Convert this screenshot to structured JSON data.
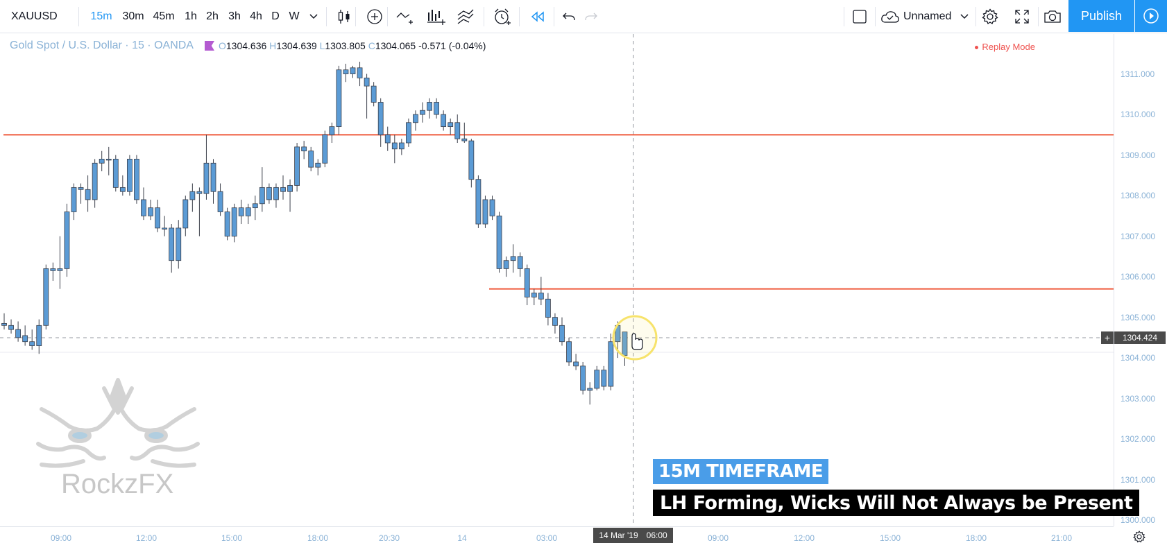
{
  "toolbar": {
    "symbol": "XAUUSD",
    "timeframes": [
      "15m",
      "30m",
      "45m",
      "1h",
      "2h",
      "3h",
      "4h",
      "D",
      "W"
    ],
    "active_timeframe": "15m",
    "layout_name": "Unnamed",
    "publish_label": "Publish"
  },
  "legend": {
    "title": "Gold Spot / U.S. Dollar · 15 · OANDA",
    "open_key": "O",
    "open": "1304.636",
    "high_key": "H",
    "high": "1304.639",
    "low_key": "L",
    "low": "1303.805",
    "close_key": "C",
    "close": "1304.065",
    "change": "-0.571 (-0.04%)"
  },
  "replay_mode": "Replay Mode",
  "price_axis": {
    "labels": [
      "1311.000",
      "1310.000",
      "1309.000",
      "1308.000",
      "1307.000",
      "1306.000",
      "1305.000",
      "1304.000",
      "1303.000",
      "1302.000",
      "1301.000",
      "1300.000"
    ],
    "current": "1304.424"
  },
  "time_axis": {
    "labels": [
      "09:00",
      "12:00",
      "15:00",
      "18:00",
      "20:30",
      "14",
      "03:00",
      "09:00",
      "12:00",
      "15:00",
      "18:00",
      "21:00"
    ],
    "cursor_date": "14 Mar '19",
    "cursor_time": "06:00"
  },
  "captions": {
    "line1": "15M TIMEFRAME",
    "line2": "LH Forming, Wicks Will Not Always be Present"
  },
  "watermark": "RockzFX",
  "colors": {
    "accent": "#2196f3",
    "candle": "#5b9bd5",
    "level_line": "#ef5a3c",
    "caption_blue": "#4a9de8",
    "highlight_ring": "#f7e36b"
  },
  "icons": [
    "chevron-down-icon",
    "candles-icon",
    "add-indicator-icon",
    "compare-icon",
    "indicators-icon",
    "templates-icon",
    "alert-icon",
    "replay-icon",
    "undo-icon",
    "redo-icon",
    "fullscreen-square-icon",
    "cloud-save-icon",
    "gear-icon",
    "expand-icon",
    "camera-icon",
    "play-icon"
  ],
  "chart_data": {
    "type": "candlestick",
    "title": "Gold Spot / U.S. Dollar · 15 · OANDA",
    "ylim": [
      1299.9,
      1311.3
    ],
    "horizontal_levels": [
      1309.5,
      1305.7
    ],
    "crosshair_price": 1304.424,
    "candles": [
      {
        "o": 1304.85,
        "h": 1305.1,
        "l": 1304.7,
        "c": 1304.8
      },
      {
        "o": 1304.8,
        "h": 1304.95,
        "l": 1304.6,
        "c": 1304.7
      },
      {
        "o": 1304.7,
        "h": 1304.9,
        "l": 1304.4,
        "c": 1304.5
      },
      {
        "o": 1304.55,
        "h": 1304.8,
        "l": 1304.3,
        "c": 1304.4
      },
      {
        "o": 1304.4,
        "h": 1304.7,
        "l": 1304.2,
        "c": 1304.3
      },
      {
        "o": 1304.3,
        "h": 1304.95,
        "l": 1304.1,
        "c": 1304.8
      },
      {
        "o": 1304.8,
        "h": 1306.3,
        "l": 1304.7,
        "c": 1306.2
      },
      {
        "o": 1306.2,
        "h": 1306.35,
        "l": 1305.9,
        "c": 1306.15
      },
      {
        "o": 1306.15,
        "h": 1307.0,
        "l": 1305.7,
        "c": 1306.2
      },
      {
        "o": 1306.2,
        "h": 1307.8,
        "l": 1306.0,
        "c": 1307.6
      },
      {
        "o": 1307.6,
        "h": 1308.3,
        "l": 1307.4,
        "c": 1308.2
      },
      {
        "o": 1308.2,
        "h": 1308.3,
        "l": 1307.8,
        "c": 1308.15
      },
      {
        "o": 1308.15,
        "h": 1308.5,
        "l": 1307.6,
        "c": 1307.9
      },
      {
        "o": 1307.9,
        "h": 1308.9,
        "l": 1307.7,
        "c": 1308.8
      },
      {
        "o": 1308.8,
        "h": 1309.1,
        "l": 1308.6,
        "c": 1308.9
      },
      {
        "o": 1308.9,
        "h": 1309.2,
        "l": 1308.5,
        "c": 1308.9
      },
      {
        "o": 1308.9,
        "h": 1309.0,
        "l": 1308.1,
        "c": 1308.2
      },
      {
        "o": 1308.2,
        "h": 1308.5,
        "l": 1308.0,
        "c": 1308.1
      },
      {
        "o": 1308.1,
        "h": 1309.0,
        "l": 1308.0,
        "c": 1308.9
      },
      {
        "o": 1308.9,
        "h": 1309.0,
        "l": 1307.8,
        "c": 1307.9
      },
      {
        "o": 1307.9,
        "h": 1308.2,
        "l": 1307.4,
        "c": 1307.5
      },
      {
        "o": 1307.5,
        "h": 1307.9,
        "l": 1307.4,
        "c": 1307.7
      },
      {
        "o": 1307.7,
        "h": 1307.9,
        "l": 1307.1,
        "c": 1307.2
      },
      {
        "o": 1307.2,
        "h": 1307.5,
        "l": 1307.0,
        "c": 1307.2
      },
      {
        "o": 1307.2,
        "h": 1307.3,
        "l": 1306.1,
        "c": 1306.4
      },
      {
        "o": 1306.4,
        "h": 1307.4,
        "l": 1306.2,
        "c": 1307.2
      },
      {
        "o": 1307.2,
        "h": 1308.0,
        "l": 1307.0,
        "c": 1307.9
      },
      {
        "o": 1307.9,
        "h": 1308.3,
        "l": 1307.6,
        "c": 1308.1
      },
      {
        "o": 1308.1,
        "h": 1308.2,
        "l": 1307.0,
        "c": 1308.05
      },
      {
        "o": 1308.05,
        "h": 1309.5,
        "l": 1307.9,
        "c": 1308.8
      },
      {
        "o": 1308.8,
        "h": 1308.9,
        "l": 1307.8,
        "c": 1308.1
      },
      {
        "o": 1308.1,
        "h": 1308.3,
        "l": 1307.5,
        "c": 1307.6
      },
      {
        "o": 1307.6,
        "h": 1307.7,
        "l": 1306.9,
        "c": 1307.0
      },
      {
        "o": 1307.0,
        "h": 1307.8,
        "l": 1306.85,
        "c": 1307.7
      },
      {
        "o": 1307.7,
        "h": 1307.9,
        "l": 1307.3,
        "c": 1307.5
      },
      {
        "o": 1307.5,
        "h": 1307.8,
        "l": 1307.3,
        "c": 1307.7
      },
      {
        "o": 1307.7,
        "h": 1308.0,
        "l": 1307.4,
        "c": 1307.8
      },
      {
        "o": 1307.8,
        "h": 1308.7,
        "l": 1307.6,
        "c": 1308.2
      },
      {
        "o": 1308.2,
        "h": 1308.3,
        "l": 1307.8,
        "c": 1307.9
      },
      {
        "o": 1307.9,
        "h": 1308.3,
        "l": 1307.7,
        "c": 1308.2
      },
      {
        "o": 1308.2,
        "h": 1308.5,
        "l": 1307.9,
        "c": 1308.1
      },
      {
        "o": 1308.1,
        "h": 1308.4,
        "l": 1307.6,
        "c": 1308.25
      },
      {
        "o": 1308.25,
        "h": 1309.3,
        "l": 1308.1,
        "c": 1309.2
      },
      {
        "o": 1309.2,
        "h": 1309.35,
        "l": 1308.9,
        "c": 1309.1
      },
      {
        "o": 1309.1,
        "h": 1309.2,
        "l": 1308.6,
        "c": 1308.7
      },
      {
        "o": 1308.7,
        "h": 1308.9,
        "l": 1308.5,
        "c": 1308.8
      },
      {
        "o": 1308.8,
        "h": 1309.6,
        "l": 1308.7,
        "c": 1309.5
      },
      {
        "o": 1309.5,
        "h": 1309.8,
        "l": 1309.3,
        "c": 1309.7
      },
      {
        "o": 1309.7,
        "h": 1311.2,
        "l": 1309.5,
        "c": 1311.1
      },
      {
        "o": 1311.1,
        "h": 1311.25,
        "l": 1310.8,
        "c": 1311.0
      },
      {
        "o": 1311.0,
        "h": 1311.2,
        "l": 1310.9,
        "c": 1311.15
      },
      {
        "o": 1311.15,
        "h": 1311.3,
        "l": 1310.7,
        "c": 1310.9
      },
      {
        "o": 1310.9,
        "h": 1311.0,
        "l": 1309.9,
        "c": 1310.7
      },
      {
        "o": 1310.7,
        "h": 1310.8,
        "l": 1310.2,
        "c": 1310.3
      },
      {
        "o": 1310.3,
        "h": 1310.4,
        "l": 1309.2,
        "c": 1309.5
      },
      {
        "o": 1309.5,
        "h": 1309.7,
        "l": 1309.1,
        "c": 1309.3
      },
      {
        "o": 1309.3,
        "h": 1309.5,
        "l": 1308.8,
        "c": 1309.15
      },
      {
        "o": 1309.15,
        "h": 1309.4,
        "l": 1309.0,
        "c": 1309.3
      },
      {
        "o": 1309.3,
        "h": 1309.9,
        "l": 1309.2,
        "c": 1309.8
      },
      {
        "o": 1309.8,
        "h": 1310.1,
        "l": 1309.6,
        "c": 1310.0
      },
      {
        "o": 1310.0,
        "h": 1310.3,
        "l": 1309.8,
        "c": 1310.1
      },
      {
        "o": 1310.1,
        "h": 1310.4,
        "l": 1309.9,
        "c": 1310.3
      },
      {
        "o": 1310.3,
        "h": 1310.4,
        "l": 1309.9,
        "c": 1310.0
      },
      {
        "o": 1310.0,
        "h": 1310.1,
        "l": 1309.6,
        "c": 1309.7
      },
      {
        "o": 1309.7,
        "h": 1309.9,
        "l": 1309.5,
        "c": 1309.8
      },
      {
        "o": 1309.8,
        "h": 1310.0,
        "l": 1309.3,
        "c": 1309.4
      },
      {
        "o": 1309.4,
        "h": 1309.8,
        "l": 1309.3,
        "c": 1309.35
      },
      {
        "o": 1309.35,
        "h": 1309.4,
        "l": 1308.2,
        "c": 1308.4
      },
      {
        "o": 1308.4,
        "h": 1308.5,
        "l": 1307.2,
        "c": 1307.3
      },
      {
        "o": 1307.3,
        "h": 1308.0,
        "l": 1307.2,
        "c": 1307.9
      },
      {
        "o": 1307.9,
        "h": 1308.0,
        "l": 1307.4,
        "c": 1307.5
      },
      {
        "o": 1307.5,
        "h": 1307.6,
        "l": 1306.1,
        "c": 1306.2
      },
      {
        "o": 1306.2,
        "h": 1306.5,
        "l": 1306.0,
        "c": 1306.4
      },
      {
        "o": 1306.4,
        "h": 1306.8,
        "l": 1306.1,
        "c": 1306.5
      },
      {
        "o": 1306.5,
        "h": 1306.6,
        "l": 1306.0,
        "c": 1306.2
      },
      {
        "o": 1306.2,
        "h": 1306.3,
        "l": 1305.3,
        "c": 1305.5
      },
      {
        "o": 1305.5,
        "h": 1305.7,
        "l": 1305.3,
        "c": 1305.6
      },
      {
        "o": 1305.6,
        "h": 1306.0,
        "l": 1305.3,
        "c": 1305.45
      },
      {
        "o": 1305.45,
        "h": 1305.6,
        "l": 1304.8,
        "c": 1305.0
      },
      {
        "o": 1305.0,
        "h": 1305.1,
        "l": 1304.6,
        "c": 1304.8
      },
      {
        "o": 1304.8,
        "h": 1305.0,
        "l": 1304.3,
        "c": 1304.4
      },
      {
        "o": 1304.4,
        "h": 1304.5,
        "l": 1303.8,
        "c": 1303.9
      },
      {
        "o": 1303.9,
        "h": 1304.1,
        "l": 1303.7,
        "c": 1303.8
      },
      {
        "o": 1303.8,
        "h": 1303.9,
        "l": 1303.1,
        "c": 1303.2
      },
      {
        "o": 1303.2,
        "h": 1303.4,
        "l": 1302.85,
        "c": 1303.25
      },
      {
        "o": 1303.25,
        "h": 1303.8,
        "l": 1303.2,
        "c": 1303.7
      },
      {
        "o": 1303.7,
        "h": 1303.8,
        "l": 1303.2,
        "c": 1303.3
      },
      {
        "o": 1303.3,
        "h": 1304.6,
        "l": 1303.2,
        "c": 1304.4
      },
      {
        "o": 1304.4,
        "h": 1304.9,
        "l": 1304.0,
        "c": 1304.8
      },
      {
        "o": 1304.64,
        "h": 1304.64,
        "l": 1303.8,
        "c": 1304.06
      }
    ]
  }
}
